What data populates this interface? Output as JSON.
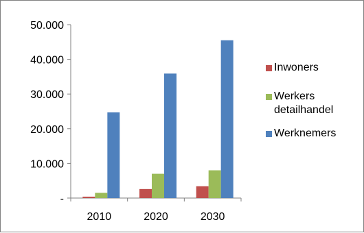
{
  "chart_data": {
    "type": "bar",
    "categories": [
      "2010",
      "2020",
      "2030"
    ],
    "series": [
      {
        "name": "Inwoners",
        "color": "#c0504d",
        "values": [
          400,
          2600,
          3400
        ]
      },
      {
        "name": "Werkers detailhandel",
        "color": "#9bbb59",
        "values": [
          1500,
          7000,
          8000
        ]
      },
      {
        "name": "Werknemers",
        "color": "#4f81bd",
        "values": [
          24700,
          35900,
          45500
        ]
      }
    ],
    "ylim": [
      0,
      50000
    ],
    "yticks": [
      {
        "value": 0,
        "label": "-"
      },
      {
        "value": 10000,
        "label": "10.000"
      },
      {
        "value": 20000,
        "label": "20.000"
      },
      {
        "value": 30000,
        "label": "30.000"
      },
      {
        "value": 40000,
        "label": "40.000"
      },
      {
        "value": 50000,
        "label": "50.000"
      }
    ],
    "grid": false,
    "legend_position": "right"
  }
}
